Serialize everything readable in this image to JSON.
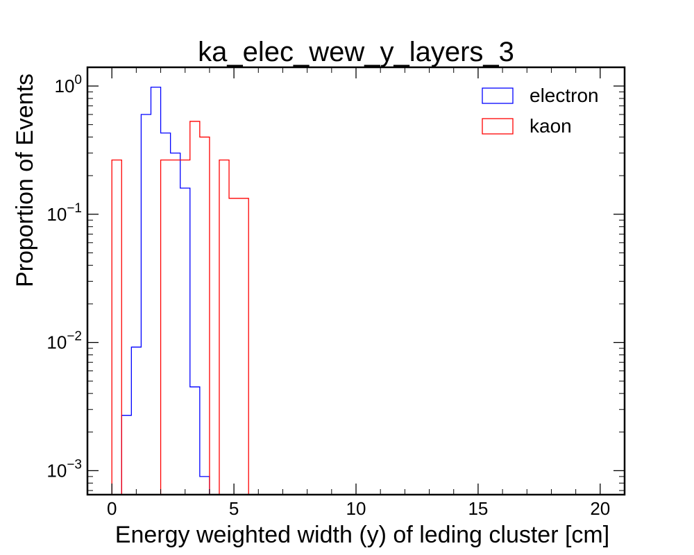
{
  "chart_data": {
    "type": "histogram",
    "title": "ka_elec_wew_y_layers_3",
    "xlabel": "Energy weighted width (y) of leding cluster [cm]",
    "ylabel": "Proportion of Events",
    "xlim": [
      -1,
      21
    ],
    "ylim": [
      0.00065,
      1.4
    ],
    "yscale": "log",
    "grid": false,
    "legend_position": "top-right",
    "xticks": [
      0,
      5,
      10,
      15,
      20
    ],
    "xtick_labels": [
      "0",
      "5",
      "10",
      "15",
      "20"
    ],
    "yticks": [
      0.001,
      0.01,
      0.1,
      1
    ],
    "ytick_labels": [
      {
        "base": "10",
        "exp": "−3"
      },
      {
        "base": "10",
        "exp": "−2"
      },
      {
        "base": "10",
        "exp": "−1"
      },
      {
        "base": "10",
        "exp": "0"
      }
    ],
    "bin_width": 0.4,
    "series": [
      {
        "name": "electron",
        "color": "#0000ff",
        "bins": [
          {
            "x0": 0.4,
            "value": 0.0027
          },
          {
            "x0": 0.8,
            "value": 0.0092
          },
          {
            "x0": 1.2,
            "value": 0.6
          },
          {
            "x0": 1.6,
            "value": 0.98
          },
          {
            "x0": 2.0,
            "value": 0.43
          },
          {
            "x0": 2.4,
            "value": 0.3
          },
          {
            "x0": 2.8,
            "value": 0.16
          },
          {
            "x0": 3.2,
            "value": 0.0045
          },
          {
            "x0": 3.6,
            "value": 0.0009
          }
        ]
      },
      {
        "name": "kaon",
        "color": "#ff0000",
        "bins": [
          {
            "x0": 0.0,
            "value": 0.265
          },
          {
            "x0": 2.0,
            "value": 0.265
          },
          {
            "x0": 2.4,
            "value": 0.265
          },
          {
            "x0": 2.8,
            "value": 0.265
          },
          {
            "x0": 3.2,
            "value": 0.53
          },
          {
            "x0": 3.6,
            "value": 0.4
          },
          {
            "x0": 4.4,
            "value": 0.265
          },
          {
            "x0": 4.8,
            "value": 0.133
          },
          {
            "x0": 5.2,
            "value": 0.133
          }
        ]
      }
    ]
  }
}
